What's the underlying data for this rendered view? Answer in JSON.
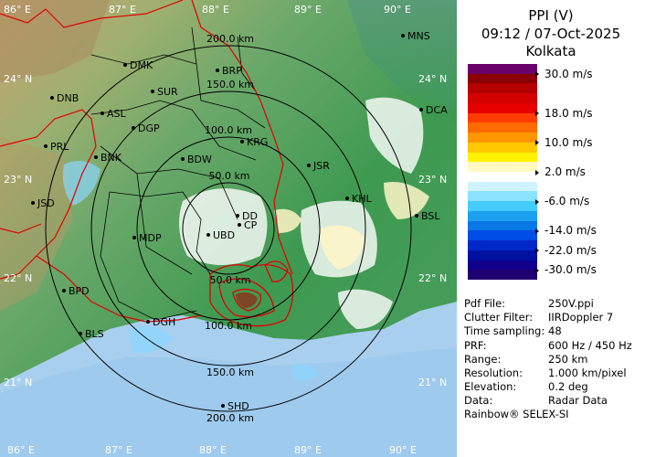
{
  "header": {
    "product": "PPI (V)",
    "datetime": "09:12 / 07-Oct-2025",
    "station": "Kolkata"
  },
  "legend": {
    "unit": "m/s",
    "colors": [
      "#6a006a",
      "#8a0000",
      "#b50000",
      "#d40000",
      "#e60000",
      "#ff3c00",
      "#ff6a00",
      "#ff9600",
      "#ffc800",
      "#fff200",
      "#fff8c0",
      "#ffffff",
      "#d0f4ff",
      "#8ae2ff",
      "#44ccff",
      "#1ca0f0",
      "#0a78e6",
      "#004ce6",
      "#0028c8",
      "#0010a0",
      "#10008c",
      "#200070"
    ],
    "labels": [
      {
        "text": "30.0 m/s",
        "row": 1
      },
      {
        "text": "18.0 m/s",
        "row": 5
      },
      {
        "text": "10.0 m/s",
        "row": 8
      },
      {
        "text": "2.0 m/s",
        "row": 11
      },
      {
        "text": "-6.0 m/s",
        "row": 14
      },
      {
        "text": "-14.0 m/s",
        "row": 17
      },
      {
        "text": "-22.0 m/s",
        "row": 19
      },
      {
        "text": "-30.0 m/s",
        "row": 21
      }
    ]
  },
  "meta": [
    {
      "key": "Pdf File:",
      "value": "250V.ppi"
    },
    {
      "key": "Clutter Filter:",
      "value": "IIRDoppler 7"
    },
    {
      "key": "Time sampling:",
      "value": "48"
    },
    {
      "key": "PRF:",
      "value": "600 Hz / 450 Hz"
    },
    {
      "key": "Range:",
      "value": "250 km"
    },
    {
      "key": "Resolution:",
      "value": "1.000 km/pixel"
    },
    {
      "key": "Elevation:",
      "value": "0.2 deg"
    },
    {
      "key": "Data:",
      "value": "Radar Data"
    }
  ],
  "credit": "Rainbow® SELEX-SI",
  "map": {
    "lon_labels": [
      "86° E",
      "87° E",
      "88° E",
      "89° E",
      "90° E"
    ],
    "lat_labels": [
      "24° N",
      "23° N",
      "22° N",
      "21° N"
    ],
    "range_labels": [
      "50.0 km",
      "100.0 km",
      "150.0 km",
      "200.0 km"
    ],
    "cities": [
      "MNS",
      "DMK",
      "BRP",
      "DNB",
      "SUR",
      "ASL",
      "DGP",
      "DCA",
      "KRG",
      "PRL",
      "BNK",
      "BDW",
      "JSR",
      "KHL",
      "JSD",
      "BSL",
      "MDP",
      "BPD",
      "DGH",
      "BLS",
      "SHD",
      "DD",
      "CP",
      "UBD"
    ]
  }
}
